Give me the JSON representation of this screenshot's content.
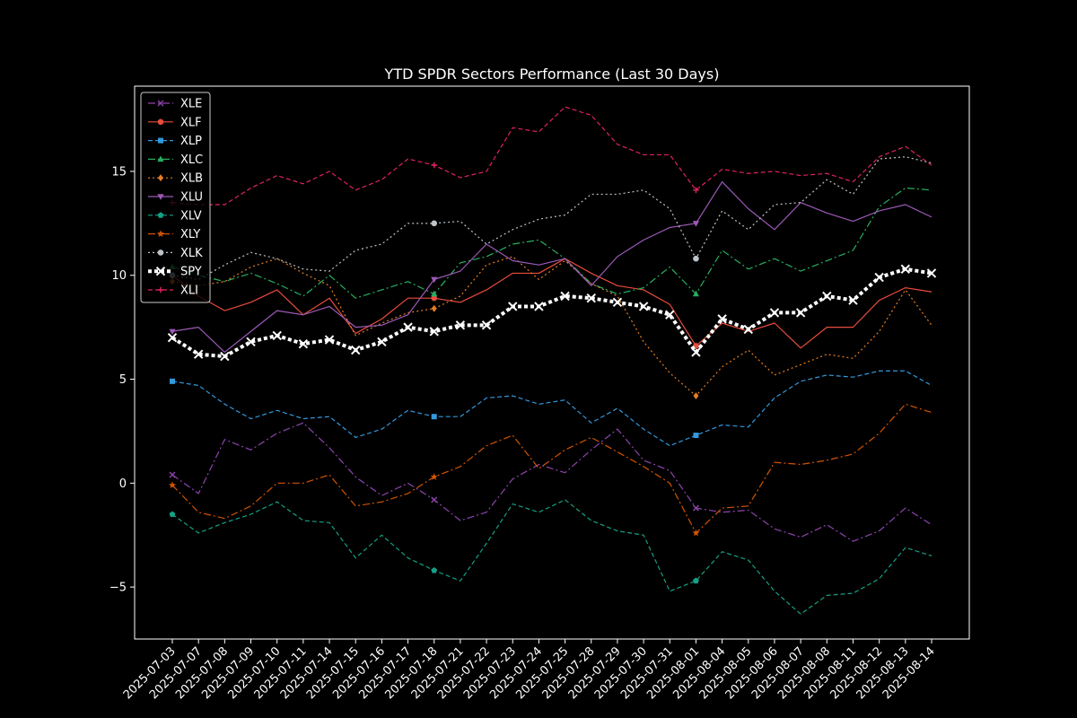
{
  "chart_data": {
    "type": "line",
    "title": "YTD SPDR Sectors Performance (Last 30 Days)",
    "xlabel": "",
    "ylabel": "",
    "ylim": [
      -7.5,
      19.1
    ],
    "yticks": [
      -5,
      0,
      5,
      10,
      15
    ],
    "grid": false,
    "legend_position": "top-left",
    "categories": [
      "2025-07-03",
      "2025-07-07",
      "2025-07-08",
      "2025-07-09",
      "2025-07-10",
      "2025-07-11",
      "2025-07-14",
      "2025-07-15",
      "2025-07-16",
      "2025-07-17",
      "2025-07-18",
      "2025-07-21",
      "2025-07-22",
      "2025-07-23",
      "2025-07-24",
      "2025-07-25",
      "2025-07-28",
      "2025-07-29",
      "2025-07-30",
      "2025-07-31",
      "2025-08-01",
      "2025-08-04",
      "2025-08-05",
      "2025-08-06",
      "2025-08-07",
      "2025-08-08",
      "2025-08-11",
      "2025-08-12",
      "2025-08-13",
      "2025-08-14"
    ],
    "series": [
      {
        "name": "XLE",
        "color": "#8e44ad",
        "dash": "8 3 2 3",
        "marker": "x",
        "width": 1.2,
        "values": [
          0.4,
          -0.5,
          2.1,
          1.6,
          2.4,
          2.9,
          1.7,
          0.3,
          -0.6,
          0.0,
          -0.8,
          -1.8,
          -1.4,
          0.2,
          0.9,
          0.5,
          1.6,
          2.6,
          1.1,
          0.6,
          -1.2,
          -1.4,
          -1.3,
          -2.2,
          -2.6,
          -2.0,
          -2.8,
          -2.3,
          -1.2,
          -2.0
        ]
      },
      {
        "name": "XLF",
        "color": "#e74c3c",
        "dash": "",
        "marker": "circle",
        "width": 1.2,
        "values": [
          10.0,
          9.0,
          8.3,
          8.7,
          9.3,
          8.1,
          8.9,
          7.2,
          7.9,
          8.9,
          8.9,
          8.7,
          9.3,
          10.1,
          10.1,
          10.8,
          10.1,
          9.5,
          9.3,
          8.6,
          6.6,
          7.7,
          7.3,
          7.7,
          6.5,
          7.5,
          7.5,
          8.8,
          9.4,
          9.2
        ]
      },
      {
        "name": "XLP",
        "color": "#3498db",
        "dash": "5 3",
        "marker": "square",
        "width": 1.2,
        "values": [
          4.9,
          4.7,
          3.8,
          3.1,
          3.5,
          3.1,
          3.2,
          2.2,
          2.6,
          3.5,
          3.2,
          3.2,
          4.1,
          4.2,
          3.8,
          4.0,
          2.9,
          3.6,
          2.6,
          1.8,
          2.3,
          2.8,
          2.7,
          4.1,
          4.9,
          5.2,
          5.1,
          5.4,
          5.4,
          4.7
        ]
      },
      {
        "name": "XLC",
        "color": "#27ae60",
        "dash": "8 3 2 3",
        "marker": "triangle-up",
        "width": 1.2,
        "values": [
          10.4,
          10.0,
          9.7,
          10.1,
          9.6,
          9.0,
          10.0,
          8.9,
          9.3,
          9.7,
          9.1,
          10.6,
          10.9,
          11.5,
          11.7,
          10.8,
          9.6,
          9.1,
          9.4,
          10.4,
          9.1,
          11.2,
          10.3,
          10.8,
          10.2,
          10.7,
          11.2,
          13.3,
          14.2,
          14.1
        ]
      },
      {
        "name": "XLB",
        "color": "#e67e22",
        "dash": "2 3",
        "marker": "diamond",
        "width": 1.2,
        "values": [
          9.7,
          9.5,
          9.7,
          10.4,
          10.8,
          10.1,
          9.5,
          7.1,
          7.7,
          8.2,
          8.4,
          9.0,
          10.5,
          10.9,
          9.8,
          10.7,
          9.6,
          9.0,
          6.8,
          5.3,
          4.2,
          5.6,
          6.4,
          5.2,
          5.7,
          6.2,
          6.0,
          7.3,
          9.3,
          7.6
        ]
      },
      {
        "name": "XLU",
        "color": "#9b59b6",
        "dash": "",
        "marker": "triangle-down",
        "width": 1.2,
        "values": [
          7.3,
          7.5,
          6.3,
          7.3,
          8.3,
          8.1,
          8.5,
          7.5,
          7.6,
          8.1,
          9.8,
          10.2,
          11.5,
          10.7,
          10.5,
          10.8,
          9.5,
          10.9,
          11.7,
          12.3,
          12.5,
          14.5,
          13.2,
          12.2,
          13.5,
          13.0,
          12.6,
          13.1,
          13.4,
          12.8
        ]
      },
      {
        "name": "XLV",
        "color": "#16a085",
        "dash": "5 3",
        "marker": "pentagon",
        "width": 1.2,
        "values": [
          -1.5,
          -2.4,
          -1.9,
          -1.5,
          -0.9,
          -1.8,
          -1.9,
          -3.6,
          -2.5,
          -3.6,
          -4.2,
          -4.7,
          -2.9,
          -1.0,
          -1.4,
          -0.8,
          -1.8,
          -2.3,
          -2.5,
          -5.2,
          -4.7,
          -3.3,
          -3.7,
          -5.2,
          -6.3,
          -5.4,
          -5.3,
          -4.6,
          -3.1,
          -3.5
        ]
      },
      {
        "name": "XLY",
        "color": "#d35400",
        "dash": "8 3 2 3",
        "marker": "star",
        "width": 1.2,
        "values": [
          -0.1,
          -1.4,
          -1.7,
          -1.1,
          0.0,
          0.0,
          0.4,
          -1.1,
          -0.9,
          -0.5,
          0.3,
          0.8,
          1.8,
          2.3,
          0.7,
          1.6,
          2.2,
          1.5,
          0.8,
          0.0,
          -2.4,
          -1.2,
          -1.1,
          1.0,
          0.9,
          1.1,
          1.4,
          2.4,
          3.8,
          3.4
        ]
      },
      {
        "name": "XLK",
        "color": "#bdc3c7",
        "dash": "2 3",
        "marker": "circle",
        "width": 1.2,
        "values": [
          10.0,
          9.8,
          10.5,
          11.1,
          10.8,
          10.3,
          10.2,
          11.2,
          11.5,
          12.5,
          12.5,
          12.6,
          11.5,
          12.2,
          12.7,
          12.9,
          13.9,
          13.9,
          14.1,
          13.2,
          10.8,
          13.1,
          12.2,
          13.4,
          13.5,
          14.6,
          13.9,
          15.6,
          15.7,
          15.4
        ]
      },
      {
        "name": "SPY",
        "color": "#ffffff",
        "dash": "4 3",
        "marker": "x",
        "width": 4,
        "values": [
          7.0,
          6.2,
          6.1,
          6.8,
          7.1,
          6.7,
          6.9,
          6.4,
          6.8,
          7.5,
          7.3,
          7.6,
          7.6,
          8.5,
          8.5,
          9.0,
          8.9,
          8.7,
          8.5,
          8.1,
          6.3,
          7.9,
          7.4,
          8.2,
          8.2,
          9.0,
          8.8,
          9.9,
          10.3,
          10.1
        ]
      },
      {
        "name": "XLI",
        "color": "#e0245e",
        "dash": "5 3",
        "marker": "plus",
        "width": 1.2,
        "values": [
          13.5,
          13.4,
          13.4,
          14.2,
          14.8,
          14.4,
          15.0,
          14.1,
          14.6,
          15.6,
          15.3,
          14.7,
          15.0,
          17.1,
          16.9,
          18.1,
          17.7,
          16.3,
          15.8,
          15.8,
          14.1,
          15.1,
          14.9,
          15.0,
          14.8,
          14.9,
          14.5,
          15.7,
          16.2,
          15.3
        ]
      }
    ]
  }
}
